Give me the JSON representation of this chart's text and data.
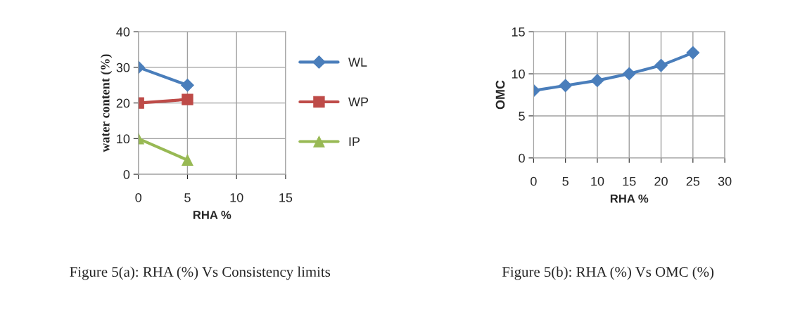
{
  "chart_data": [
    {
      "type": "line",
      "xlabel": "RHA %",
      "ylabel": "water content (%)",
      "x": [
        0,
        5
      ],
      "xlim": [
        0,
        15
      ],
      "xticks": [
        0,
        5,
        10,
        15
      ],
      "ylim": [
        0,
        40
      ],
      "yticks": [
        0,
        10,
        20,
        30,
        40
      ],
      "grid": true,
      "legend": "right",
      "series": [
        {
          "name": "WL",
          "color": "#4a7ebb",
          "marker": "diamond",
          "values": [
            30,
            25
          ]
        },
        {
          "name": "WP",
          "color": "#be4b48",
          "marker": "square",
          "values": [
            20,
            21
          ]
        },
        {
          "name": "IP",
          "color": "#98b954",
          "marker": "triangle",
          "values": [
            10,
            4
          ]
        }
      ],
      "annotations": [
        "Figure 5(a): RHA (%) Vs Consistency limits"
      ]
    },
    {
      "type": "line",
      "xlabel": "RHA %",
      "ylabel": "OMC",
      "x": [
        0,
        5,
        10,
        15,
        20,
        25
      ],
      "xlim": [
        0,
        30
      ],
      "xticks": [
        0,
        5,
        10,
        15,
        20,
        25,
        30
      ],
      "ylim": [
        0,
        15
      ],
      "yticks": [
        0,
        5,
        10,
        15
      ],
      "grid": true,
      "marker": "diamond",
      "series": [
        {
          "color": "#4a7ebb",
          "values": [
            8,
            8.6,
            9.2,
            10,
            11,
            12.5
          ]
        }
      ],
      "annotations": [
        "Figure 5(b): RHA (%) Vs OMC (%)"
      ]
    }
  ]
}
